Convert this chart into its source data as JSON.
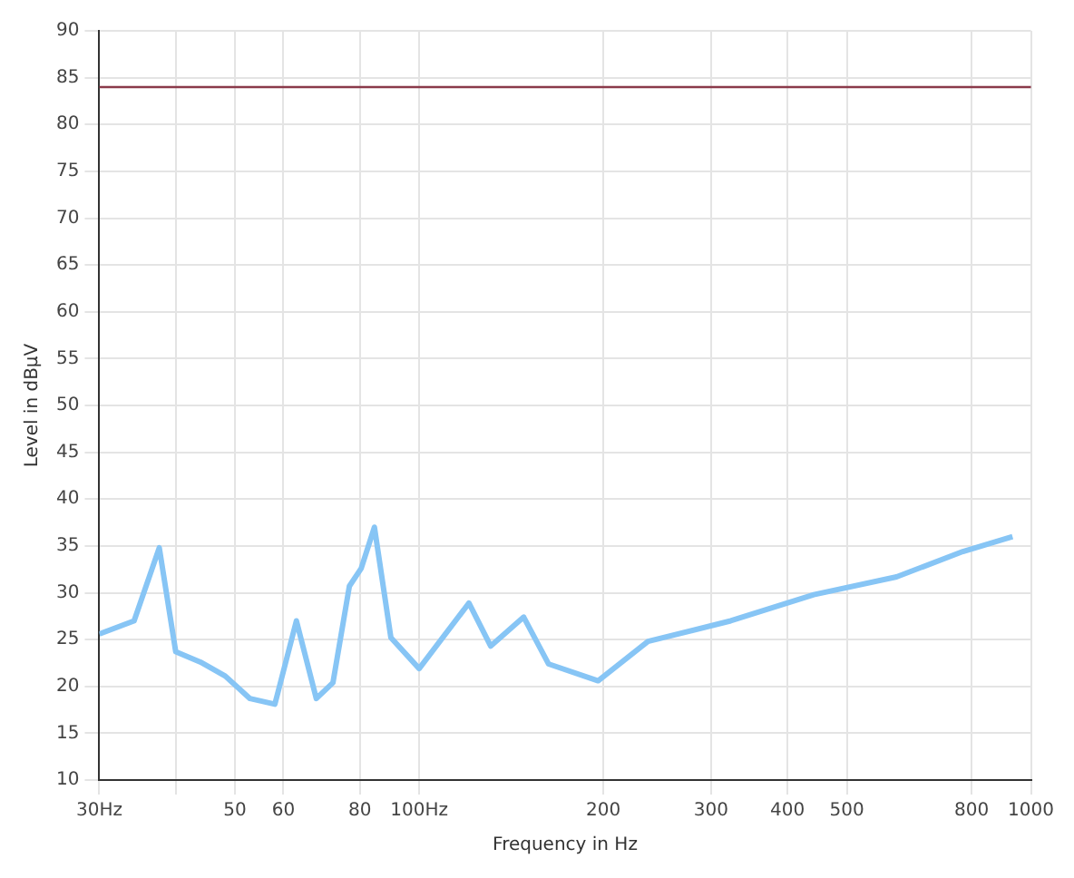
{
  "chart_data": {
    "type": "line",
    "xlabel": "Frequency in Hz",
    "ylabel": "Level in dBµV",
    "log": "x",
    "grid": true,
    "legend": false,
    "marker": "none",
    "xlim": [
      30,
      1000
    ],
    "xticks": [
      {
        "value": 30,
        "label": "30Hz"
      },
      {
        "value": 40,
        "label": null
      },
      50,
      60,
      80,
      {
        "value": 100,
        "label": "100Hz"
      },
      200,
      300,
      400,
      500,
      800,
      1000
    ],
    "ylim": [
      10,
      90
    ],
    "yticks": [
      10,
      15,
      20,
      25,
      30,
      35,
      40,
      45,
      50,
      55,
      60,
      65,
      70,
      75,
      80,
      85,
      90
    ],
    "ref_lines": [
      {
        "axis": "y",
        "value": 84,
        "color": "#8a3a4a"
      }
    ],
    "series": [
      {
        "color": "#87c5f5",
        "x": [
          30,
          34.2,
          37.6,
          40,
          43.9,
          48.2,
          52.9,
          58.1,
          63,
          67.9,
          72.3,
          76.9,
          80.4,
          84.5,
          89.9,
          100,
          120.6,
          130.9,
          148.2,
          162.7,
          196.1,
          236.6,
          323,
          441.6,
          603,
          774,
          933
        ],
        "values": [
          25.6,
          27.0,
          34.8,
          23.7,
          22.6,
          21.1,
          18.7,
          18.1,
          27.0,
          18.7,
          20.4,
          30.7,
          32.6,
          37.0,
          25.2,
          21.9,
          28.9,
          24.3,
          27.4,
          22.4,
          20.6,
          24.8,
          27.0,
          29.8,
          31.7,
          34.4,
          36.0
        ]
      }
    ]
  }
}
